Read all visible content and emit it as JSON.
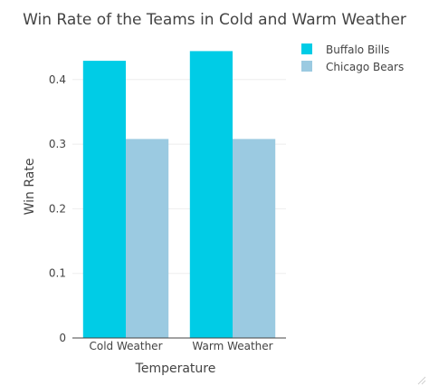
{
  "chart_data": {
    "type": "bar",
    "title": "Win Rate of the Teams in Cold and Warm Weather",
    "xlabel": "Temperature",
    "ylabel": "Win Rate",
    "categories": [
      "Cold Weather",
      "Warm Weather"
    ],
    "ylim": [
      0,
      0.46
    ],
    "yticks": [
      0,
      0.1,
      0.2,
      0.3,
      0.4
    ],
    "ytick_labels": [
      "0",
      "0.1",
      "0.2",
      "0.3",
      "0.4"
    ],
    "grid": true,
    "legend_position": "top-right",
    "series": [
      {
        "name": "Buffalo Bills",
        "color": "#00CCE6",
        "values": [
          0.429,
          0.444
        ]
      },
      {
        "name": "Chicago Bears",
        "color": "#9BCAE1",
        "values": [
          0.308,
          0.308
        ]
      }
    ]
  }
}
